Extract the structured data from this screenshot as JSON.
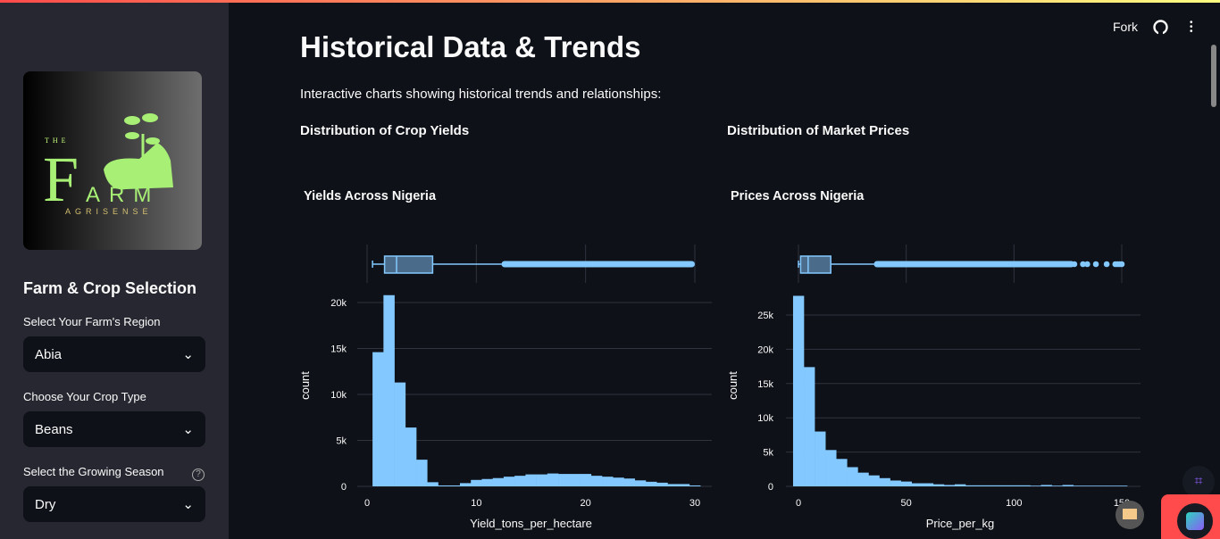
{
  "header": {
    "fork_label": "Fork",
    "github_icon": "github-icon",
    "menu_icon": "kebab-menu-icon"
  },
  "sidebar": {
    "logo": {
      "top": "THE",
      "main": "FARM",
      "tagline": "AGRISENSE"
    },
    "section_title": "Farm & Crop Selection",
    "region": {
      "label": "Select Your Farm's Region",
      "value": "Abia"
    },
    "crop": {
      "label": "Choose Your Crop Type",
      "value": "Beans"
    },
    "season": {
      "label": "Select the Growing Season",
      "value": "Dry"
    }
  },
  "main": {
    "title": "Historical Data & Trends",
    "intro": "Interactive charts showing historical trends and relationships:",
    "left_heading": "Distribution of Crop Yields",
    "right_heading": "Distribution of Market Prices"
  },
  "chart_data": [
    {
      "type": "bar",
      "title": "Yields Across Nigeria",
      "xlabel": "Yield_tons_per_hectare",
      "ylabel": "count",
      "bin_width": 1,
      "x": [
        1,
        2,
        3,
        4,
        5,
        6,
        7,
        8,
        9,
        10,
        11,
        12,
        13,
        14,
        15,
        16,
        17,
        18,
        19,
        20,
        21,
        22,
        23,
        24,
        25,
        26,
        27,
        28,
        29,
        30
      ],
      "values": [
        14600,
        20800,
        11300,
        6400,
        2900,
        450,
        100,
        100,
        350,
        700,
        800,
        900,
        1050,
        1150,
        1300,
        1300,
        1400,
        1350,
        1350,
        1350,
        1150,
        1050,
        950,
        850,
        650,
        500,
        400,
        250,
        250,
        100
      ],
      "xticks": [
        "0",
        "10",
        "20",
        "30"
      ],
      "xtick_values": [
        0,
        10,
        20,
        30
      ],
      "yticks": [
        "0",
        "5k",
        "10k",
        "15k",
        "20k"
      ],
      "ytick_values": [
        0,
        5000,
        10000,
        15000,
        20000
      ],
      "xlim": [
        -0.5,
        31.5
      ],
      "ylim": [
        0,
        21000
      ],
      "color": "#83c9ff",
      "box": {
        "min": 0.5,
        "q1": 1.6,
        "median": 2.7,
        "q3": 6.0,
        "upper_fence": 12.3,
        "max_outlier": 30
      },
      "outlier_points": []
    },
    {
      "type": "bar",
      "title": "Prices Across Nigeria",
      "xlabel": "Price_per_kg",
      "ylabel": "count",
      "bin_width": 5,
      "x": [
        0,
        5,
        10,
        15,
        20,
        25,
        30,
        35,
        40,
        45,
        50,
        55,
        60,
        65,
        70,
        75,
        80,
        85,
        90,
        95,
        100,
        105,
        110,
        115,
        120,
        125,
        130,
        135,
        140,
        145,
        150
      ],
      "values": [
        27800,
        17400,
        8000,
        5300,
        4000,
        2800,
        2000,
        1600,
        1200,
        850,
        700,
        450,
        450,
        300,
        200,
        300,
        150,
        150,
        150,
        150,
        150,
        150,
        100,
        200,
        100,
        200,
        100,
        100,
        100,
        100,
        100
      ],
      "xticks": [
        "0",
        "50",
        "100",
        "150"
      ],
      "xtick_values": [
        0,
        50,
        100,
        150
      ],
      "yticks": [
        "0",
        "5k",
        "10k",
        "15k",
        "20k",
        "25k"
      ],
      "ytick_values": [
        0,
        5000,
        10000,
        15000,
        20000,
        25000
      ],
      "xlim": [
        -7,
        160
      ],
      "ylim": [
        0,
        28000
      ],
      "color": "#83c9ff",
      "box": {
        "min": 0,
        "q1": 1,
        "median": 4.5,
        "q3": 15,
        "upper_fence": 35,
        "max_outlier": 150
      },
      "outlier_points": [
        128,
        132,
        134,
        138,
        143,
        147,
        148,
        149,
        150
      ]
    }
  ]
}
